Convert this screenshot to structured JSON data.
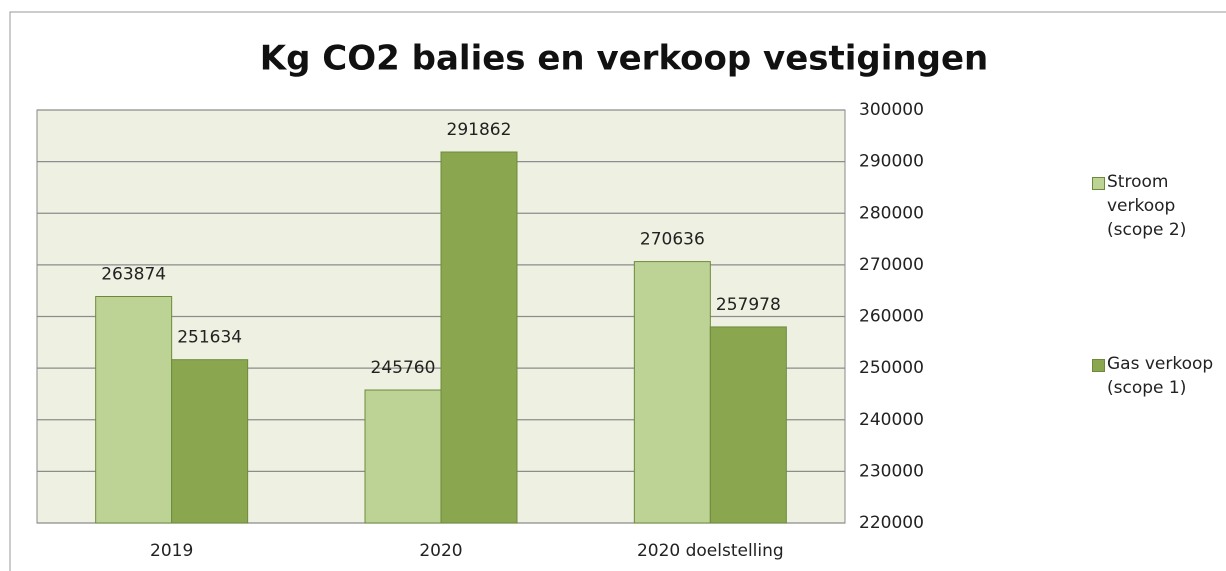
{
  "chart_data": {
    "type": "bar",
    "title": "Kg CO2 balies en verkoop vestigingen",
    "categories": [
      "2019",
      "2020",
      "2020 doelstelling"
    ],
    "series": [
      {
        "name": "Stroom verkoop (scope 2)",
        "color": "#bdd396",
        "values": [
          263874,
          245760,
          270636
        ]
      },
      {
        "name": "Gas verkoop (scope 1)",
        "color": "#8aa74f",
        "values": [
          251634,
          291862,
          257978
        ]
      }
    ],
    "ylim": [
      220000,
      300000
    ],
    "yticks": [
      220000,
      230000,
      240000,
      250000,
      260000,
      270000,
      280000,
      290000,
      300000
    ],
    "y_axis_position": "right",
    "grid": true,
    "legend_position": "right"
  }
}
